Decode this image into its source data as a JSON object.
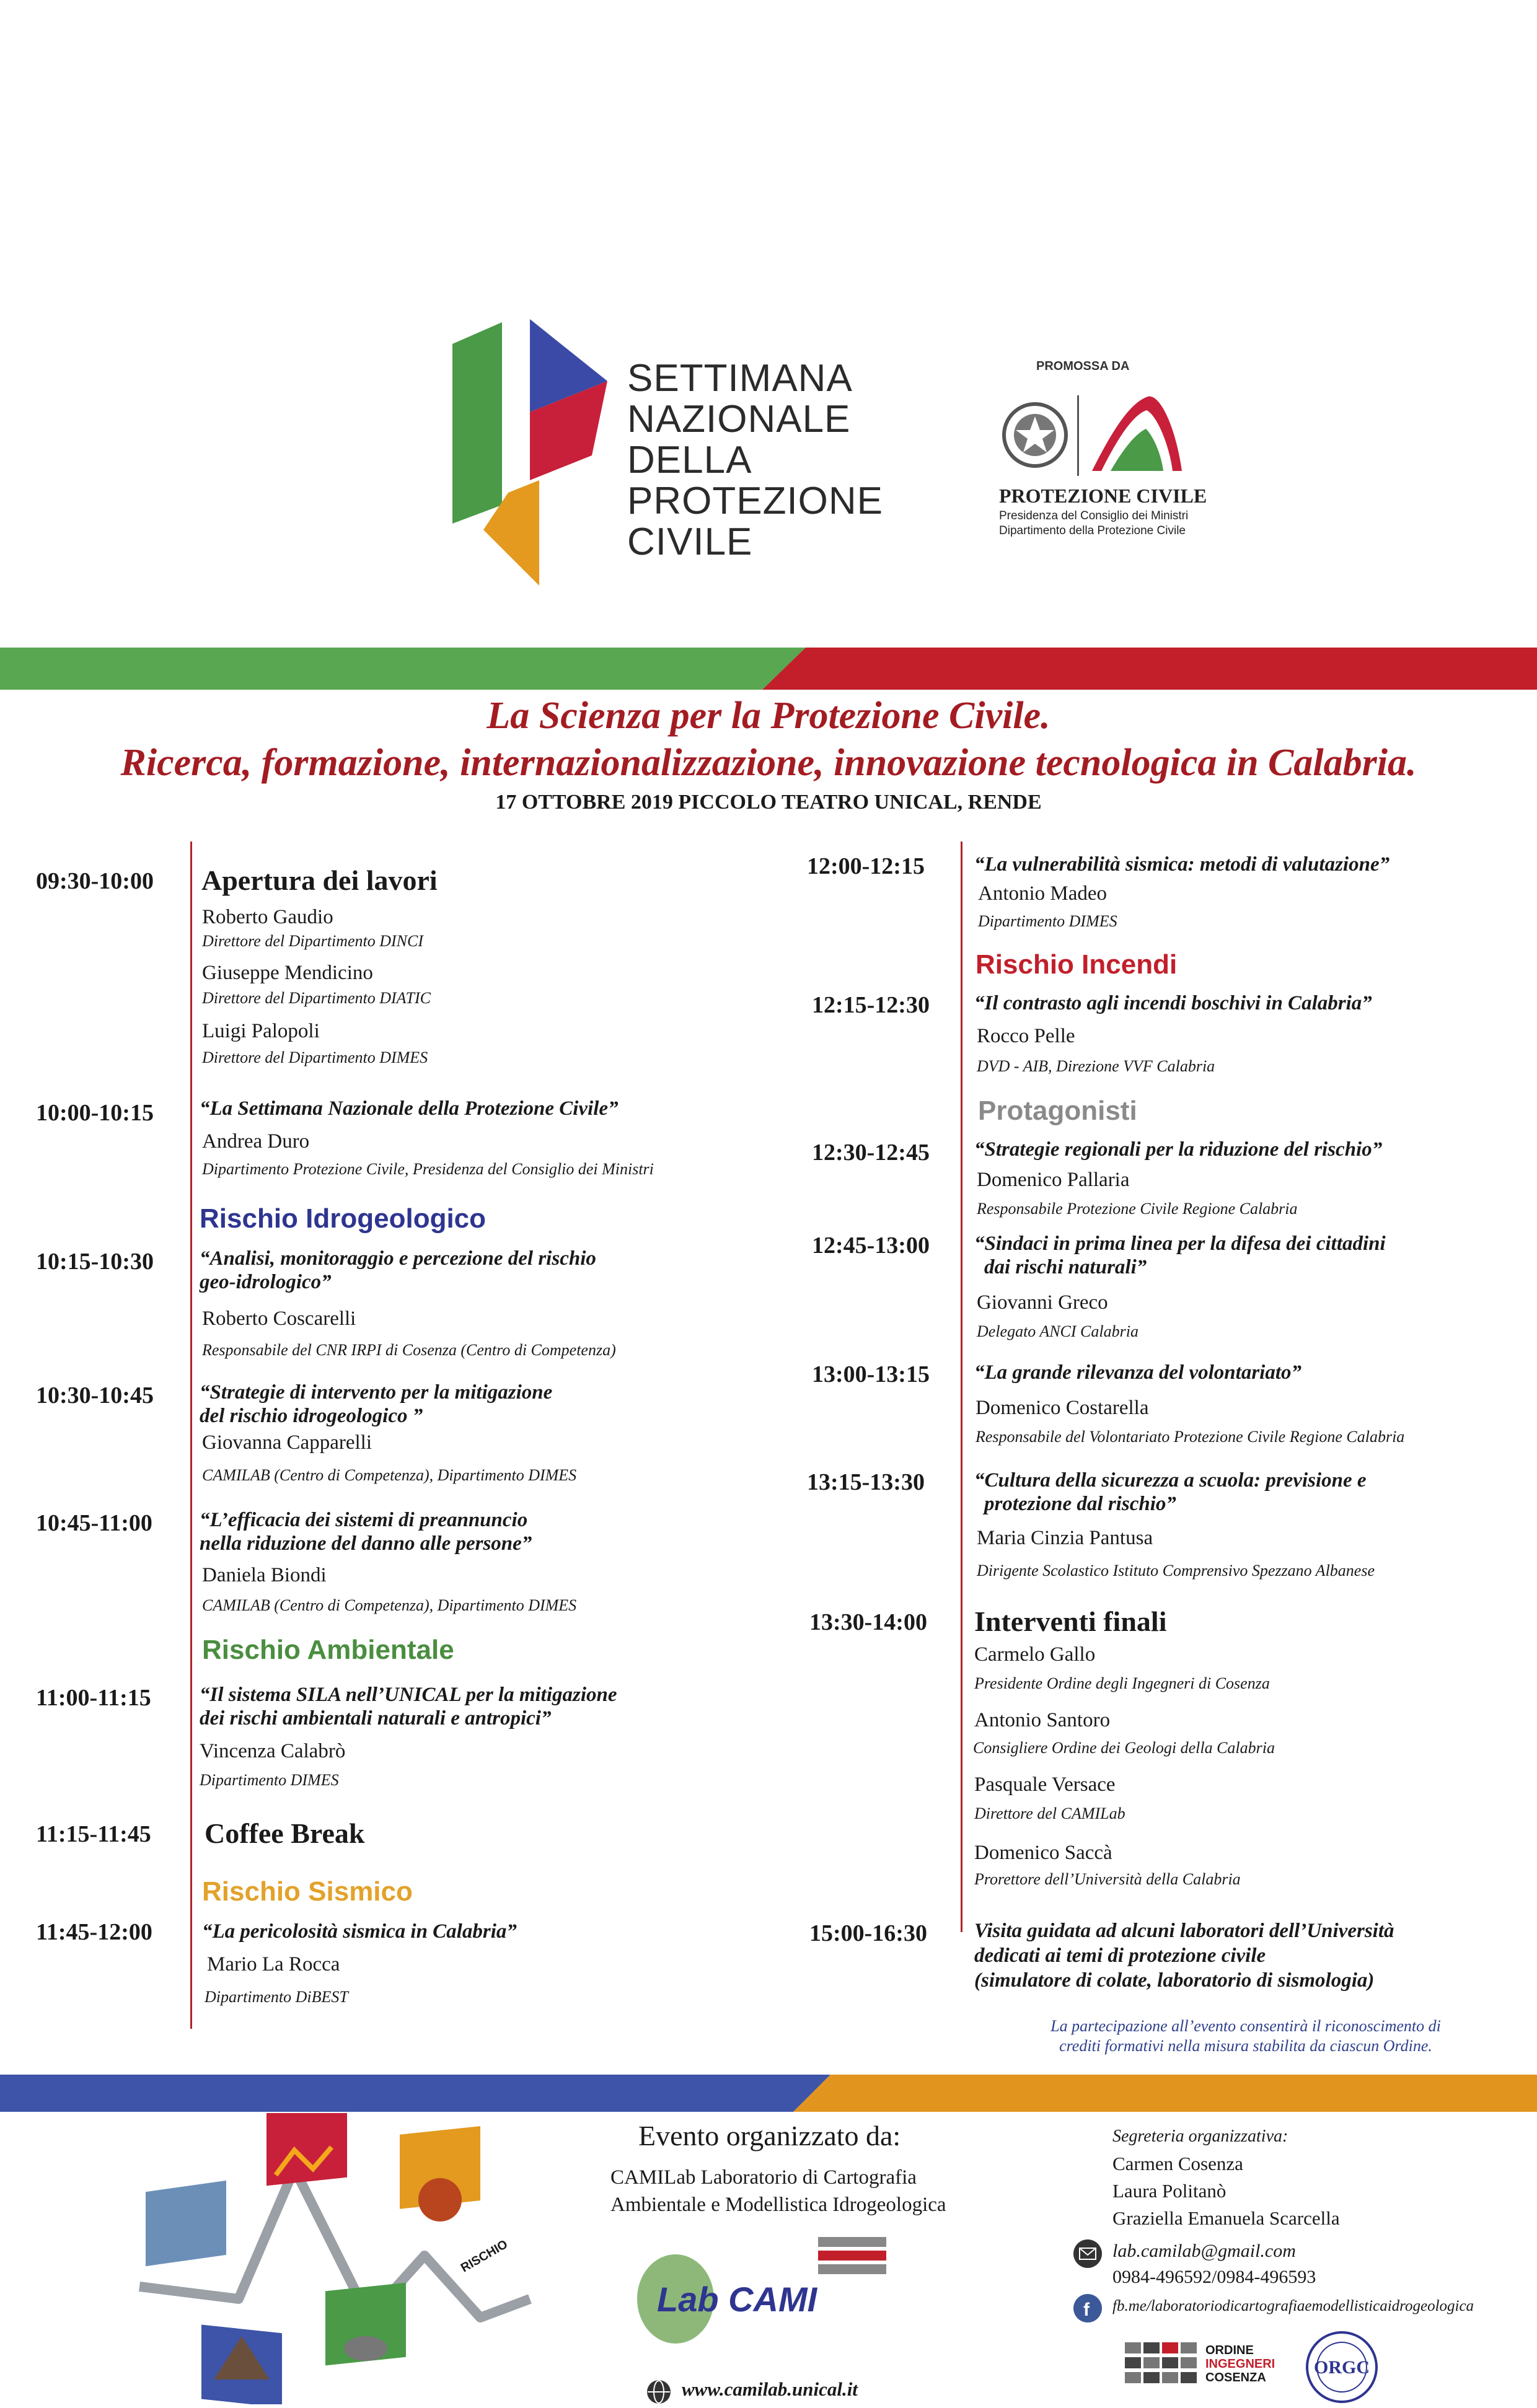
{
  "header": {
    "logo_lines": [
      "SETTIMANA",
      "NAZIONALE",
      "DELLA",
      "PROTEZIONE",
      "CIVILE"
    ],
    "promossa": "PROMOSSA DA",
    "pc_name": "PROTEZIONE CIVILE",
    "pc_sub1": "Presidenza del Consiglio dei Ministri",
    "pc_sub2": "Dipartimento della Protezione Civile"
  },
  "title": {
    "line1": "La Scienza per la Protezione Civile.",
    "line2": "Ricerca, formazione, internazionalizzazione, innovazione tecnologica in Calabria.",
    "date": "17 OTTOBRE 2019 PICCOLO TEATRO UNICAL, RENDE"
  },
  "left": {
    "s1": {
      "time": "09:30-10:00",
      "title": "Apertura dei lavori",
      "p1": "Roberto Gaudio",
      "r1": "Direttore del Dipartimento DINCI",
      "p2": "Giuseppe Mendicino",
      "r2": "Direttore del Dipartimento DIATIC",
      "p3": "Luigi Palopoli",
      "r3": "Direttore del Dipartimento DIMES"
    },
    "s2": {
      "time": "10:00-10:15",
      "talk": "“La Settimana Nazionale della Protezione Civile”",
      "name": "Andrea Duro",
      "role": "Dipartimento Protezione Civile, Presidenza del Consiglio dei Ministri"
    },
    "sec_idro": "Rischio Idrogeologico",
    "s3": {
      "time": "10:15-10:30",
      "talk1": "“Analisi, monitoraggio e percezione del rischio",
      "talk2": "geo-idrologico”",
      "name": "Roberto Coscarelli",
      "role": "Responsabile del CNR IRPI di Cosenza (Centro di Competenza)"
    },
    "s4": {
      "time": "10:30-10:45",
      "talk1": "“Strategie di intervento per la mitigazione",
      "talk2": "del rischio idrogeologico ”",
      "name": "Giovanna Capparelli",
      "role": "CAMILAB (Centro di Competenza), Dipartimento DIMES"
    },
    "s5": {
      "time": "10:45-11:00",
      "talk1": "“L’efficacia dei sistemi di preannuncio",
      "talk2": "nella riduzione del danno alle persone”",
      "name": "Daniela Biondi",
      "role": "CAMILAB (Centro di Competenza), Dipartimento DIMES"
    },
    "sec_amb": "Rischio Ambientale",
    "s6": {
      "time": "11:00-11:15",
      "talk1": "“Il sistema SILA nell’UNICAL per la mitigazione",
      "talk2": "dei rischi ambientali naturali e antropici”",
      "name": "Vincenza Calabrò",
      "role": "Dipartimento DIMES"
    },
    "s7": {
      "time": "11:15-11:45",
      "title": "Coffee Break"
    },
    "sec_sis": "Rischio Sismico",
    "s8": {
      "time": "11:45-12:00",
      "talk": "“La pericolosità sismica in Calabria”",
      "name": "Mario La Rocca",
      "role": "Dipartimento DiBEST"
    }
  },
  "right": {
    "s1": {
      "time": "12:00-12:15",
      "talk": "“La vulnerabilità sismica: metodi di valutazione”",
      "name": "Antonio Madeo",
      "role": "Dipartimento DIMES"
    },
    "sec_inc": "Rischio Incendi",
    "s2": {
      "time": "12:15-12:30",
      "talk": "“Il contrasto agli incendi boschivi in Calabria”",
      "name": "Rocco Pelle",
      "role": "DVD - AIB, Direzione VVF Calabria"
    },
    "sec_prot": "Protagonisti",
    "s3": {
      "time": "12:30-12:45",
      "talk": "“Strategie regionali per la riduzione del rischio”",
      "name": "Domenico Pallaria",
      "role": "Responsabile Protezione Civile Regione Calabria"
    },
    "s4": {
      "time": "12:45-13:00",
      "talk1": "“Sindaci in prima linea per la difesa dei cittadini",
      "talk2": "dai rischi naturali”",
      "name": "Giovanni Greco",
      "role": "Delegato ANCI Calabria"
    },
    "s5": {
      "time": "13:00-13:15",
      "talk": "“La grande rilevanza del volontariato”",
      "name": "Domenico Costarella",
      "role": "Responsabile del Volontariato Protezione Civile Regione Calabria"
    },
    "s6": {
      "time": "13:15-13:30",
      "talk1": "“Cultura della sicurezza a scuola: previsione e",
      "talk2": "protezione dal rischio”",
      "name": "Maria Cinzia Pantusa",
      "role": "Dirigente Scolastico Istituto Comprensivo Spezzano Albanese"
    },
    "s7": {
      "time": "13:30-14:00",
      "title": "Interventi finali",
      "p1": "Carmelo Gallo",
      "r1": "Presidente Ordine degli Ingegneri di Cosenza",
      "p2": "Antonio Santoro",
      "r2": "Consigliere Ordine dei Geologi della Calabria",
      "p3": "Pasquale Versace",
      "r3": "Direttore del CAMILab",
      "p4": "Domenico Saccà",
      "r4": "Prorettore dell’Università della Calabria"
    },
    "s8": {
      "time": "15:00-16:30",
      "talk1": "Visita guidata ad alcuni laboratori dell’Università",
      "talk2": "dedicati ai temi di protezione civile",
      "talk3": "(simulatore di colate, laboratorio di sismologia)"
    },
    "note1": "La partecipazione all’evento consentirà il riconoscimento di",
    "note2": "crediti formativi nella misura stabilita da ciascun Ordine."
  },
  "footer": {
    "org_title": "Evento organizzato da:",
    "org_sub1": "CAMILab Laboratorio di Cartografia",
    "org_sub2": "Ambientale e  Modellistica Idrogeologica",
    "website": "www.camilab.unical.it",
    "rischio_label": "RISCHIO",
    "lab_logo": "Lab CAMI",
    "seg_title": "Segreteria organizzativa:",
    "seg1": "Carmen Cosenza",
    "seg2": "Laura Politanò",
    "seg3": "Graziella Emanuela Scarcella",
    "email": "lab.camilab@gmail.com",
    "phone": "0984-496592/0984-496593",
    "fb": "fb.me/laboratoriodicartografiaemodellisticaidrogeologica",
    "ordine1": "ORDINE",
    "ordine2": "INGEGNERI",
    "ordine3": "COSENZA",
    "orgc": "ORGC"
  }
}
